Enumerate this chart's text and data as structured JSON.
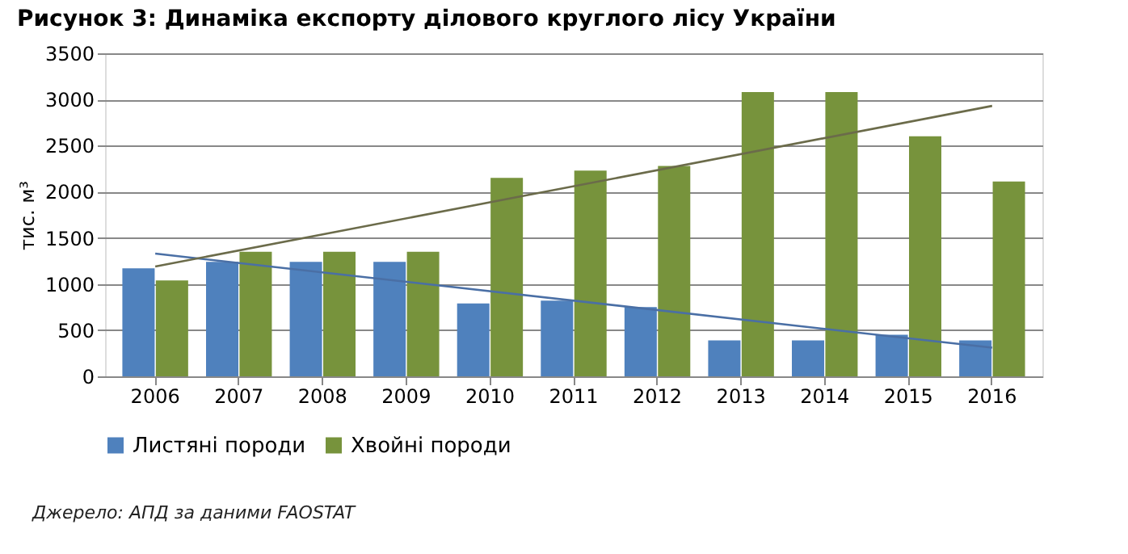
{
  "chart_data": {
    "type": "bar",
    "title": "Рисунок 3: Динаміка експорту ділового круглого лісу України",
    "ylabel": "тис. м³",
    "categories": [
      "2006",
      "2007",
      "2008",
      "2009",
      "2010",
      "2011",
      "2012",
      "2013",
      "2014",
      "2015",
      "2016"
    ],
    "series": [
      {
        "name": "Листяні породи",
        "color": "#4f81bd",
        "values": [
          1170,
          1240,
          1240,
          1240,
          790,
          820,
          750,
          390,
          390,
          450,
          390
        ]
      },
      {
        "name": "Хвойні породи",
        "color": "#77933c",
        "values": [
          1040,
          1350,
          1350,
          1350,
          2150,
          2230,
          2280,
          3080,
          3080,
          2600,
          2110
        ]
      },
      {
        "type": "line",
        "color": "#4a6fa5",
        "values": [
          1330,
          null,
          null,
          null,
          null,
          null,
          null,
          null,
          null,
          null,
          310
        ]
      },
      {
        "type": "line",
        "color": "#6b6b4a",
        "values": [
          1190,
          null,
          null,
          null,
          null,
          null,
          null,
          null,
          null,
          null,
          2930
        ]
      }
    ],
    "ylim": [
      0,
      3500
    ],
    "yticks": [
      0,
      500,
      1000,
      1500,
      2000,
      2500,
      3000,
      3500
    ],
    "grid": "y",
    "legend": "bottom",
    "annotations": [
      "Джерело: АПД за даними FAOSTAT"
    ]
  }
}
